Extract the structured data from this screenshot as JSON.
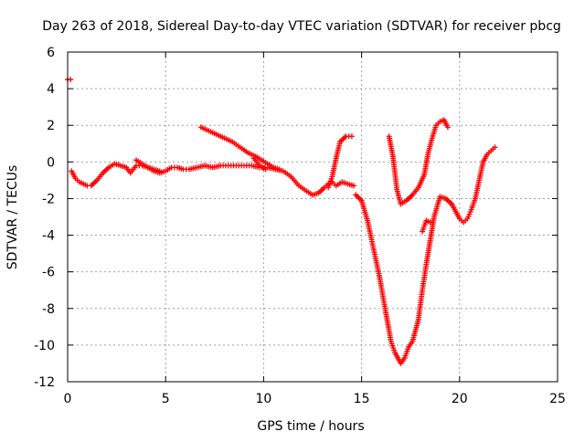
{
  "chart_data": {
    "type": "scatter",
    "title": "Day 263 of 2018, Sidereal Day-to-day VTEC variation (SDTVAR) for receiver pbcg",
    "xlabel": "GPS time / hours",
    "ylabel": "SDTVAR / TECUs",
    "xlim": [
      0,
      25
    ],
    "ylim": [
      -12,
      6
    ],
    "xticks": [
      0,
      5,
      10,
      15,
      20,
      25
    ],
    "yticks": [
      -12,
      -10,
      -8,
      -6,
      -4,
      -2,
      0,
      2,
      4,
      6
    ],
    "grid": true,
    "legend": "none",
    "series": [
      {
        "name": "pbcg",
        "color": "#ff0000",
        "marker": "plus",
        "segments": [
          {
            "x": [
              0.0,
              0.15
            ],
            "y": [
              4.5,
              4.5
            ]
          },
          {
            "x": [
              0.2,
              0.4,
              0.6,
              0.8,
              1.0,
              1.2,
              1.5,
              1.8,
              2.1,
              2.4,
              2.7,
              3.0,
              3.2,
              3.5,
              3.8,
              4.1,
              4.4,
              4.7,
              5.0,
              5.3,
              5.6,
              5.9,
              6.2,
              6.6,
              7.0,
              7.4,
              7.8,
              8.2,
              8.6,
              9.0,
              9.4,
              9.8,
              10.2,
              10.6,
              11.0,
              11.4,
              11.8,
              12.2,
              12.5,
              12.8,
              13.1,
              13.3,
              13.5,
              13.7,
              14.0,
              14.3,
              14.6
            ],
            "y": [
              -0.5,
              -0.9,
              -1.1,
              -1.2,
              -1.3,
              -1.3,
              -1.0,
              -0.6,
              -0.3,
              -0.1,
              -0.2,
              -0.3,
              -0.6,
              -0.2,
              -0.2,
              -0.3,
              -0.5,
              -0.6,
              -0.5,
              -0.3,
              -0.3,
              -0.4,
              -0.4,
              -0.3,
              -0.2,
              -0.3,
              -0.2,
              -0.2,
              -0.2,
              -0.2,
              -0.2,
              -0.3,
              -0.3,
              -0.4,
              -0.5,
              -0.8,
              -1.3,
              -1.6,
              -1.8,
              -1.7,
              -1.4,
              -1.2,
              -1.1,
              -1.3,
              -1.1,
              -1.2,
              -1.3
            ]
          },
          {
            "x": [
              3.5,
              3.8,
              4.1,
              4.4,
              4.7
            ],
            "y": [
              0.1,
              -0.1,
              -0.3,
              -0.4,
              -0.5
            ]
          },
          {
            "x": [
              6.8,
              7.2,
              7.6,
              8.0,
              8.4,
              8.8,
              9.2,
              9.6,
              9.9,
              10.2,
              10.5,
              10.8
            ],
            "y": [
              1.9,
              1.7,
              1.5,
              1.3,
              1.1,
              0.8,
              0.5,
              0.3,
              0.1,
              -0.1,
              -0.3,
              -0.4
            ]
          },
          {
            "x": [
              9.5,
              9.8,
              10.1
            ],
            "y": [
              0.2,
              -0.2,
              -0.4
            ]
          },
          {
            "x": [
              13.3,
              13.5,
              13.7,
              13.9,
              14.2,
              14.5
            ],
            "y": [
              -1.4,
              -0.8,
              0.2,
              1.1,
              1.4,
              1.4
            ]
          },
          {
            "x": [
              14.7,
              15.0,
              15.3,
              15.6,
              15.9,
              16.2,
              16.5,
              16.7,
              16.9,
              17.0,
              17.2,
              17.4,
              17.6,
              17.9,
              18.1,
              18.3,
              18.5,
              18.7,
              19.0,
              19.3,
              19.6
            ],
            "y": [
              -1.8,
              -2.1,
              -3.2,
              -4.7,
              -6.2,
              -8.0,
              -9.8,
              -10.4,
              -10.8,
              -11.0,
              -10.7,
              -10.1,
              -9.8,
              -8.6,
              -7.0,
              -5.6,
              -4.3,
              -3.0,
              -1.9,
              -2.0,
              -2.3
            ]
          },
          {
            "x": [
              18.1,
              18.3,
              18.5
            ],
            "y": [
              -3.8,
              -3.2,
              -3.3
            ]
          },
          {
            "x": [
              16.4,
              16.6,
              16.8,
              17.0,
              17.3,
              17.6,
              17.9,
              18.2,
              18.4,
              18.6,
              18.8,
              19.0,
              19.2,
              19.4
            ],
            "y": [
              1.4,
              0.3,
              -1.5,
              -2.3,
              -2.1,
              -1.8,
              -1.4,
              -0.7,
              0.5,
              1.3,
              2.0,
              2.2,
              2.3,
              1.9
            ]
          },
          {
            "x": [
              19.6,
              19.8,
              20.0,
              20.2,
              20.4,
              20.6,
              20.8,
              21.0,
              21.2,
              21.4,
              21.6,
              21.8
            ],
            "y": [
              -2.3,
              -2.7,
              -3.1,
              -3.3,
              -3.1,
              -2.6,
              -2.0,
              -1.0,
              0.0,
              0.4,
              0.6,
              0.8
            ]
          }
        ]
      }
    ]
  }
}
